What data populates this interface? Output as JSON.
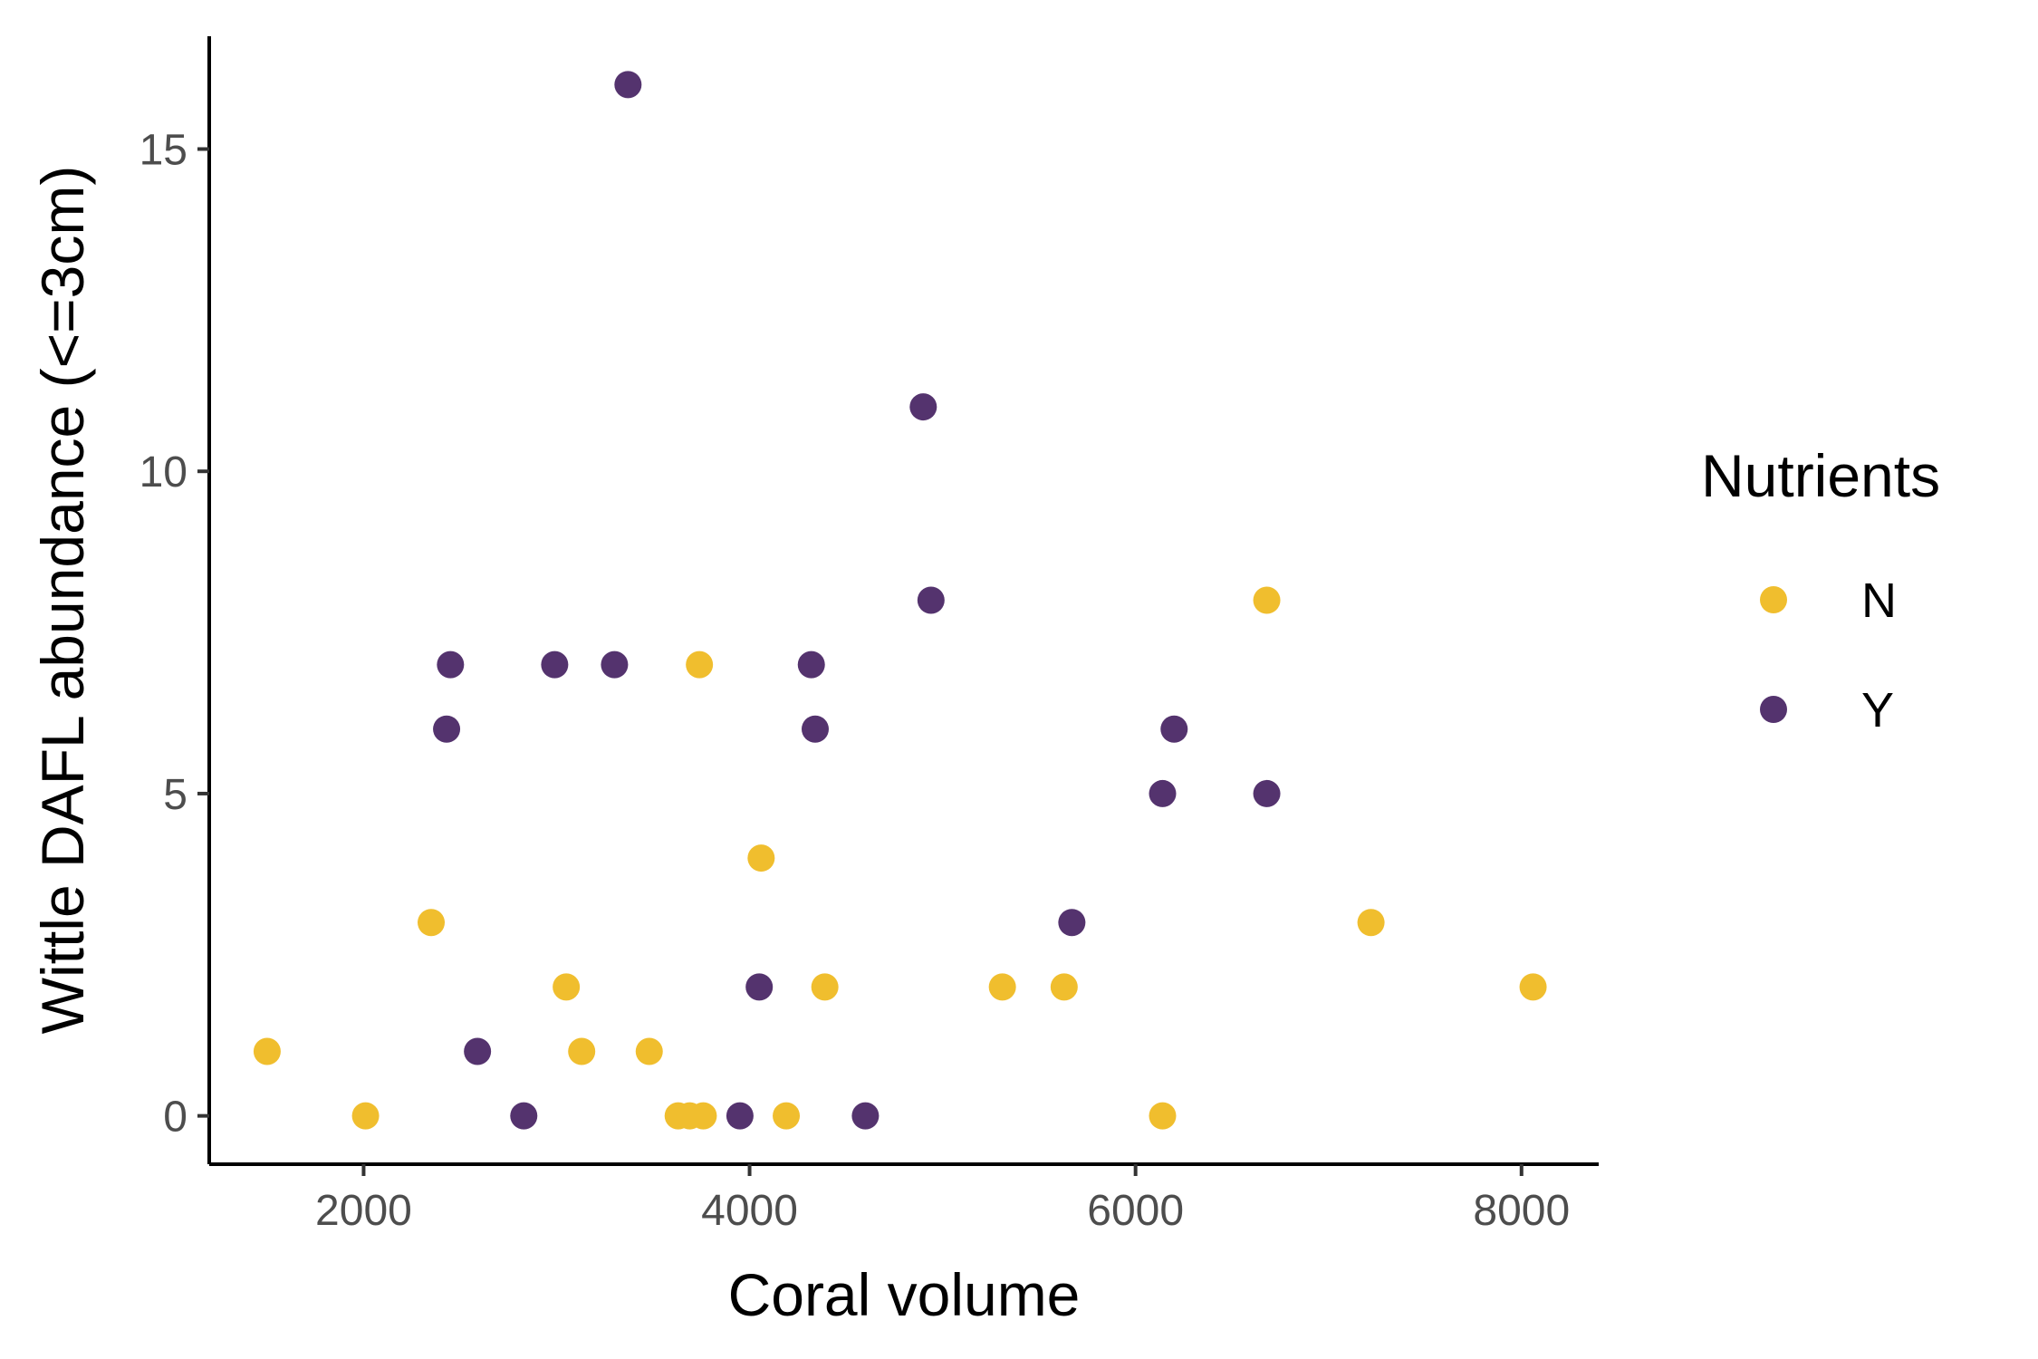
{
  "chart_data": {
    "type": "scatter",
    "xlabel": "Coral volume",
    "ylabel": "Wittle DAFL abundance (<=3cm)",
    "xlim": [
      1200,
      8400
    ],
    "ylim": [
      -0.75,
      16.75
    ],
    "xticks": [
      2000,
      4000,
      6000,
      8000
    ],
    "yticks": [
      0,
      5,
      10,
      15
    ],
    "grid": false,
    "legend": {
      "title": "Nutrients",
      "position": "right"
    },
    "series": [
      {
        "name": "N",
        "color": "#F0BE2E",
        "points": [
          {
            "x": 1500,
            "y": 1
          },
          {
            "x": 2010,
            "y": 0
          },
          {
            "x": 2350,
            "y": 3
          },
          {
            "x": 3050,
            "y": 2
          },
          {
            "x": 3130,
            "y": 1
          },
          {
            "x": 3480,
            "y": 1
          },
          {
            "x": 3630,
            "y": 0
          },
          {
            "x": 3690,
            "y": 0
          },
          {
            "x": 3760,
            "y": 0
          },
          {
            "x": 3740,
            "y": 7
          },
          {
            "x": 4060,
            "y": 4
          },
          {
            "x": 4190,
            "y": 0
          },
          {
            "x": 4390,
            "y": 2
          },
          {
            "x": 5310,
            "y": 2
          },
          {
            "x": 5630,
            "y": 2
          },
          {
            "x": 6140,
            "y": 0
          },
          {
            "x": 6680,
            "y": 8
          },
          {
            "x": 7220,
            "y": 3
          },
          {
            "x": 8060,
            "y": 2
          }
        ]
      },
      {
        "name": "Y",
        "color": "#54336E",
        "points": [
          {
            "x": 2430,
            "y": 6
          },
          {
            "x": 2450,
            "y": 7
          },
          {
            "x": 2590,
            "y": 1
          },
          {
            "x": 2830,
            "y": 0
          },
          {
            "x": 2990,
            "y": 7
          },
          {
            "x": 3300,
            "y": 7
          },
          {
            "x": 3370,
            "y": 16
          },
          {
            "x": 3950,
            "y": 0
          },
          {
            "x": 4050,
            "y": 2
          },
          {
            "x": 4320,
            "y": 7
          },
          {
            "x": 4340,
            "y": 6
          },
          {
            "x": 4600,
            "y": 0
          },
          {
            "x": 4900,
            "y": 11
          },
          {
            "x": 4940,
            "y": 8
          },
          {
            "x": 5670,
            "y": 3
          },
          {
            "x": 6140,
            "y": 5
          },
          {
            "x": 6200,
            "y": 6
          },
          {
            "x": 6680,
            "y": 5
          }
        ]
      }
    ]
  }
}
